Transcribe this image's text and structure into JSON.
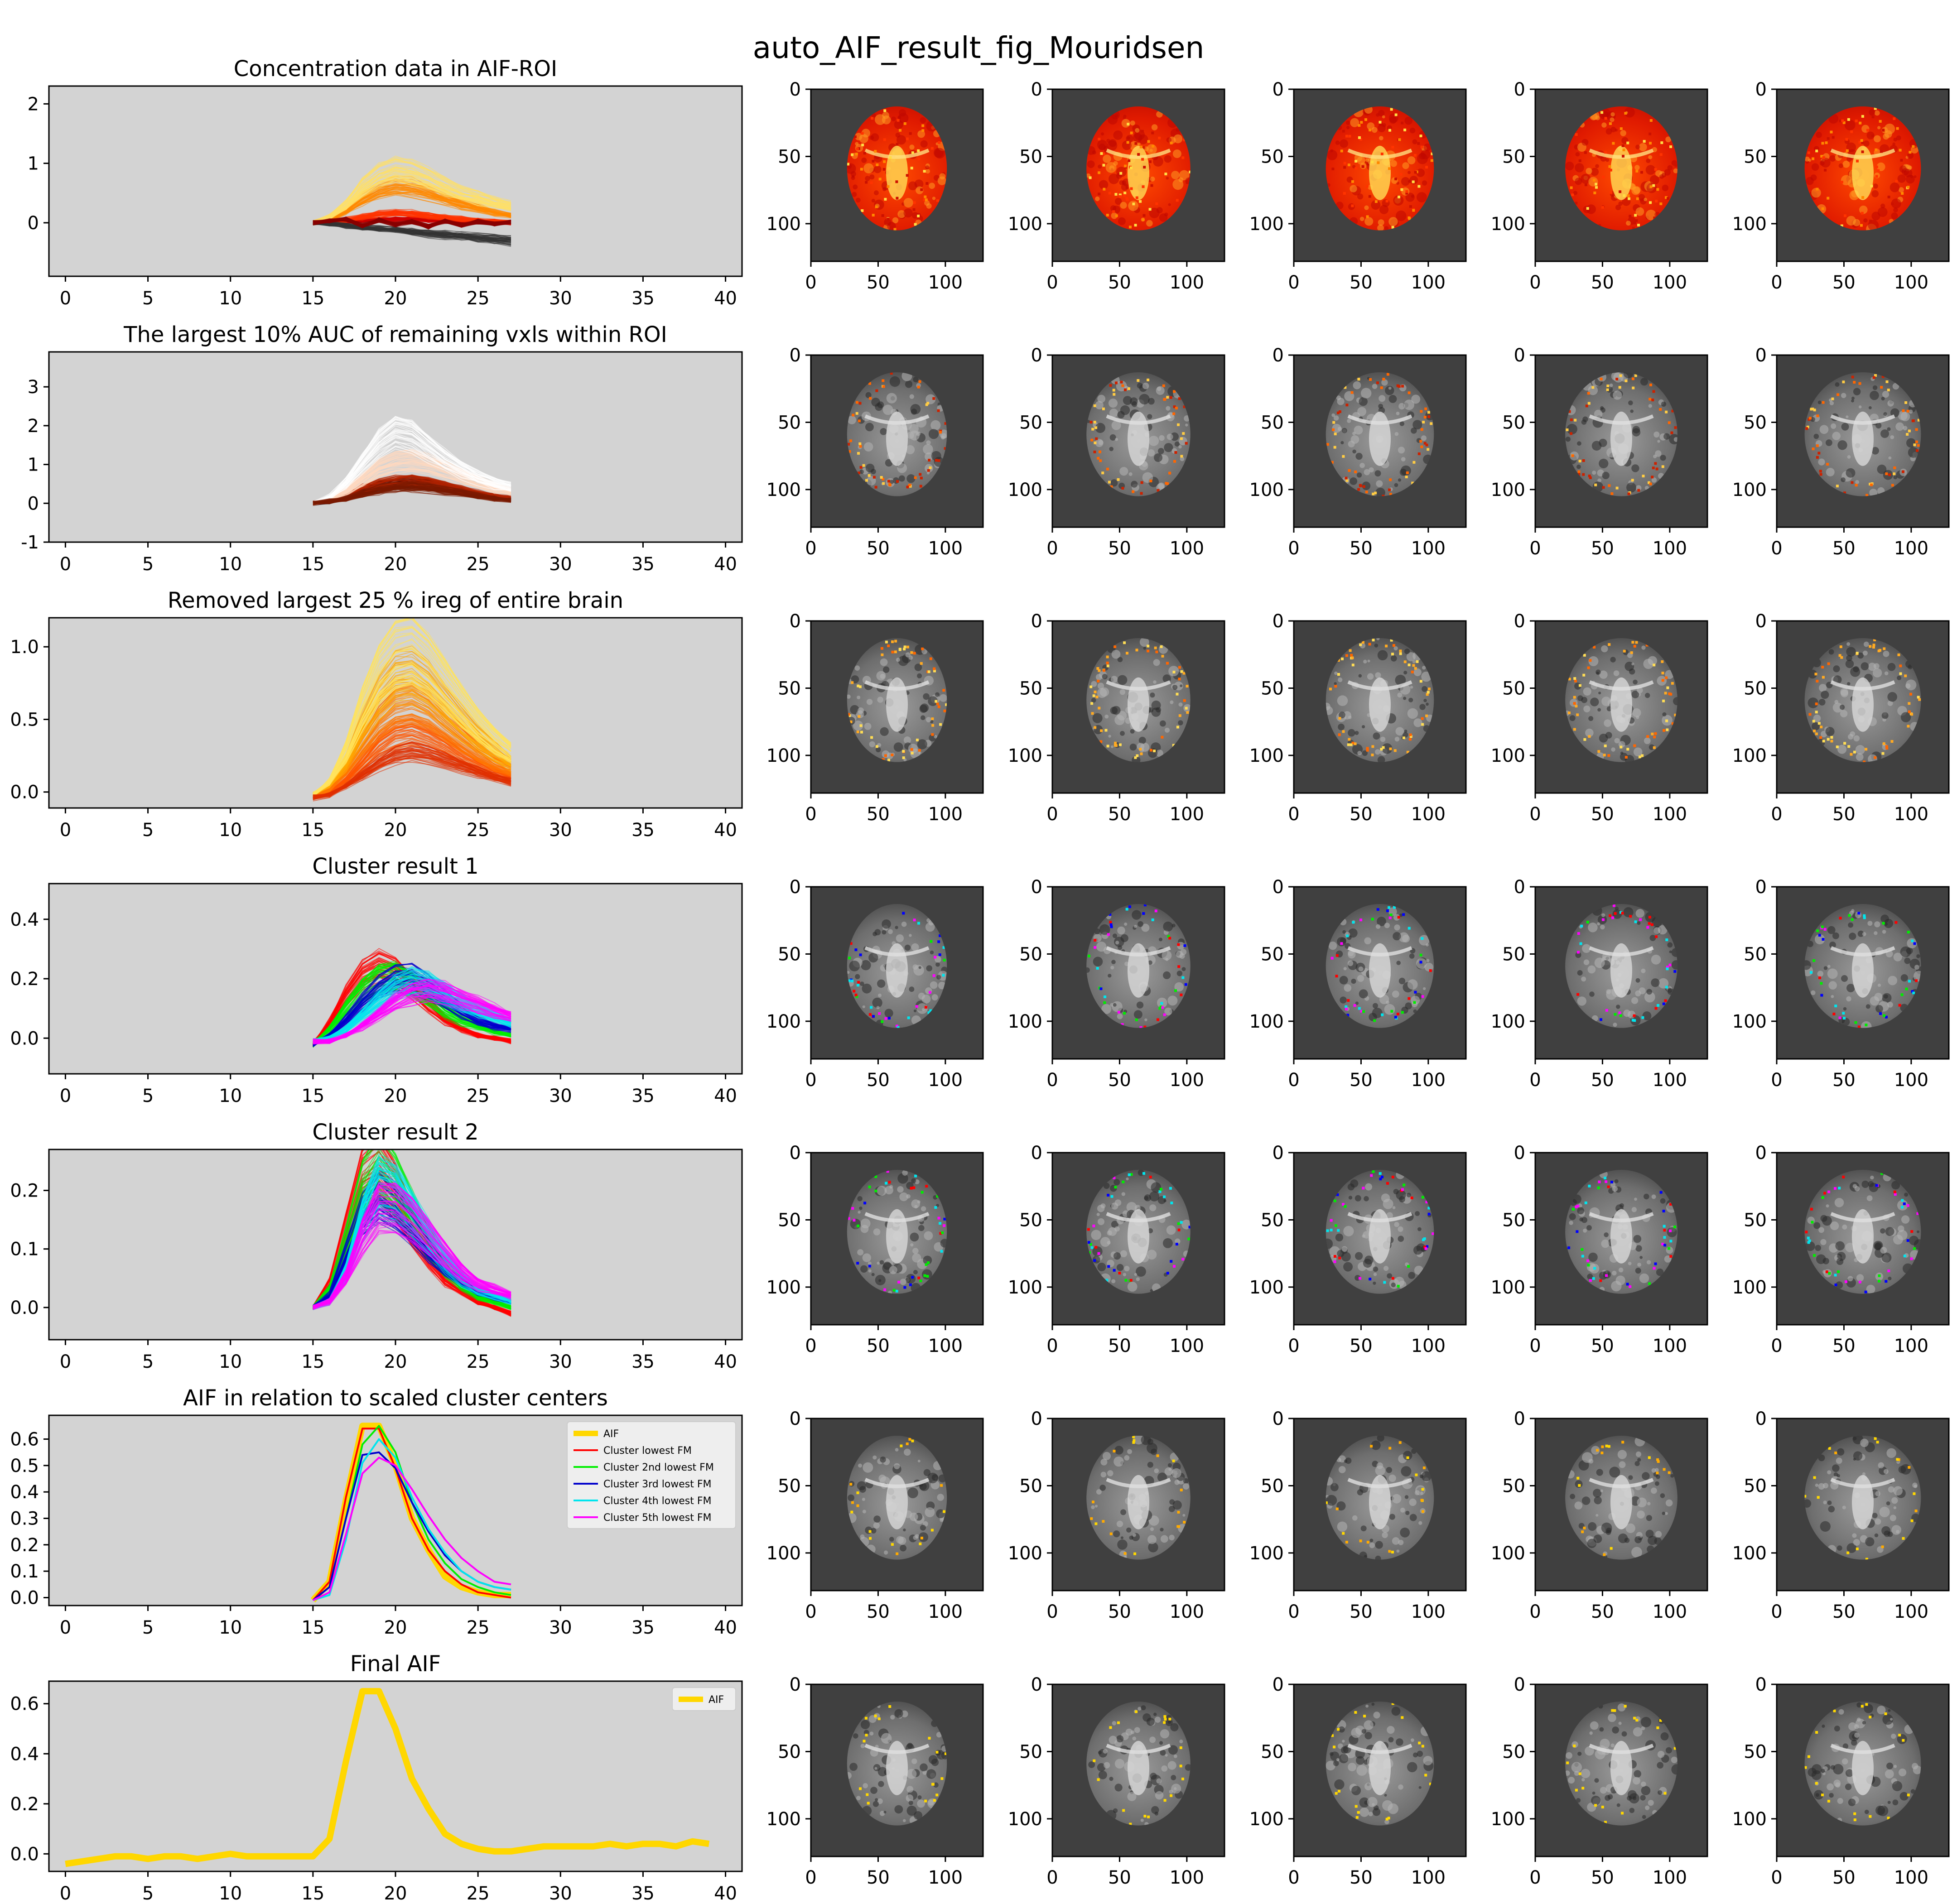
{
  "figure_title": "auto_AIF_result_fig_Mouridsen",
  "chart_data": [
    {
      "type": "line",
      "title": "Concentration data in AIF-ROI",
      "xlim": [
        -1,
        41
      ],
      "ylim": [
        -0.9,
        2.3
      ],
      "xticks": [
        0,
        5,
        10,
        15,
        20,
        25,
        30,
        35,
        40
      ],
      "yticks": [
        0,
        1,
        2
      ],
      "grid": false,
      "background": "#d3d3d3",
      "series_kind": "voxel curves (many thin lines)",
      "x": [
        15,
        16,
        17,
        18,
        19,
        20,
        21,
        22,
        23,
        24,
        25,
        26,
        27
      ],
      "series": [
        {
          "values": [
            0.0,
            0.01,
            0.02,
            0.04,
            0.05,
            0.06,
            0.06,
            0.05,
            0.04,
            0.03,
            0.02,
            0.01,
            0.0
          ],
          "color": "#cc0000"
        },
        {
          "values": [
            0.0,
            0.02,
            0.05,
            0.1,
            0.14,
            0.16,
            0.15,
            0.12,
            0.09,
            0.06,
            0.04,
            0.02,
            0.01
          ],
          "color": "#ff3300"
        },
        {
          "values": [
            0.0,
            0.05,
            0.2,
            0.4,
            0.55,
            0.62,
            0.6,
            0.52,
            0.42,
            0.32,
            0.25,
            0.18,
            0.12
          ],
          "color": "#ff8800"
        },
        {
          "values": [
            0.0,
            0.1,
            0.3,
            0.6,
            0.8,
            0.9,
            0.85,
            0.75,
            0.62,
            0.5,
            0.42,
            0.35,
            0.28
          ],
          "color": "#ffe066"
        },
        {
          "values": [
            0.0,
            -0.02,
            -0.05,
            -0.08,
            -0.1,
            -0.12,
            -0.15,
            -0.18,
            -0.2,
            -0.22,
            -0.25,
            -0.28,
            -0.3
          ],
          "color": "#333333"
        },
        {
          "values": [
            0.0,
            0.03,
            0.06,
            -0.05,
            0.04,
            -0.03,
            0.02,
            -0.06,
            0.03,
            -0.04,
            0.02,
            -0.02,
            0.01
          ],
          "color": "#880000"
        }
      ]
    },
    {
      "type": "line",
      "title": "The largest 10% AUC of remaining vxls within ROI",
      "xlim": [
        -1,
        41
      ],
      "ylim": [
        -1.0,
        3.9
      ],
      "xticks": [
        0,
        5,
        10,
        15,
        20,
        25,
        30,
        35,
        40
      ],
      "yticks": [
        -1,
        0,
        1,
        2,
        3
      ],
      "grid": false,
      "background": "#d3d3d3",
      "series_kind": "voxel curves (many thin lines)",
      "x": [
        15,
        16,
        17,
        18,
        19,
        20,
        21,
        22,
        23,
        24,
        25,
        26,
        27
      ],
      "series": [
        {
          "values": [
            0.0,
            0.05,
            0.15,
            0.3,
            0.42,
            0.5,
            0.52,
            0.48,
            0.4,
            0.3,
            0.22,
            0.15,
            0.1
          ],
          "color": "#330000"
        },
        {
          "values": [
            0.0,
            0.08,
            0.2,
            0.38,
            0.5,
            0.58,
            0.6,
            0.55,
            0.45,
            0.35,
            0.25,
            0.18,
            0.12
          ],
          "color": "#b22200"
        },
        {
          "values": [
            0.0,
            0.1,
            0.3,
            0.6,
            0.9,
            1.05,
            1.1,
            1.0,
            0.85,
            0.7,
            0.55,
            0.4,
            0.3
          ],
          "color": "#ffd9c0"
        },
        {
          "values": [
            0.0,
            0.15,
            0.5,
            1.0,
            1.5,
            1.8,
            1.7,
            1.4,
            1.1,
            0.85,
            0.65,
            0.5,
            0.4
          ],
          "color": "#ffffff"
        },
        {
          "values": [
            0.0,
            0.05,
            0.12,
            0.25,
            0.35,
            0.42,
            0.44,
            0.4,
            0.33,
            0.26,
            0.19,
            0.13,
            0.09
          ],
          "color": "#7a1a00"
        }
      ]
    },
    {
      "type": "line",
      "title": "Removed largest 25 % ireg of entire brain",
      "xlim": [
        -1,
        41
      ],
      "ylim": [
        -0.11,
        1.2
      ],
      "xticks": [
        0,
        5,
        10,
        15,
        20,
        25,
        30,
        35,
        40
      ],
      "yticks": [
        0.0,
        0.5,
        1.0
      ],
      "grid": false,
      "background": "#d3d3d3",
      "series_kind": "voxel curves (many thin lines)",
      "x": [
        15,
        16,
        17,
        18,
        19,
        20,
        21,
        22,
        23,
        24,
        25,
        26,
        27
      ],
      "series": [
        {
          "values": [
            -0.02,
            0.0,
            0.08,
            0.2,
            0.32,
            0.4,
            0.42,
            0.38,
            0.32,
            0.25,
            0.19,
            0.14,
            0.1
          ],
          "color": "#ff5500"
        },
        {
          "values": [
            -0.03,
            0.02,
            0.15,
            0.32,
            0.48,
            0.58,
            0.6,
            0.55,
            0.45,
            0.36,
            0.27,
            0.2,
            0.15
          ],
          "color": "#ff7700"
        },
        {
          "values": [
            -0.02,
            0.05,
            0.2,
            0.45,
            0.65,
            0.78,
            0.8,
            0.72,
            0.6,
            0.48,
            0.37,
            0.28,
            0.2
          ],
          "color": "#ffaa00"
        },
        {
          "values": [
            -0.02,
            0.07,
            0.28,
            0.58,
            0.82,
            0.95,
            0.98,
            0.88,
            0.74,
            0.6,
            0.47,
            0.36,
            0.27
          ],
          "color": "#ffe45c"
        },
        {
          "values": [
            -0.04,
            -0.02,
            0.04,
            0.12,
            0.2,
            0.26,
            0.28,
            0.26,
            0.22,
            0.18,
            0.14,
            0.1,
            0.07
          ],
          "color": "#e03000"
        }
      ]
    },
    {
      "type": "line",
      "title": "Cluster result 1",
      "xlim": [
        -1,
        41
      ],
      "ylim": [
        -0.12,
        0.52
      ],
      "xticks": [
        0,
        5,
        10,
        15,
        20,
        25,
        30,
        35,
        40
      ],
      "yticks": [
        0.0,
        0.2,
        0.4
      ],
      "grid": false,
      "background": "#d3d3d3",
      "series_kind": "clustered voxel curves (many thin lines per cluster)",
      "x": [
        15,
        16,
        17,
        18,
        19,
        20,
        21,
        22,
        23,
        24,
        25,
        26,
        27
      ],
      "series": [
        {
          "values": [
            -0.02,
            0.05,
            0.14,
            0.21,
            0.24,
            0.22,
            0.17,
            0.11,
            0.06,
            0.03,
            0.01,
            0.0,
            -0.01
          ],
          "color": "#ff0000"
        },
        {
          "values": [
            -0.02,
            0.03,
            0.1,
            0.16,
            0.2,
            0.21,
            0.18,
            0.14,
            0.09,
            0.06,
            0.04,
            0.02,
            0.01
          ],
          "color": "#00ee00"
        },
        {
          "values": [
            -0.02,
            0.01,
            0.06,
            0.12,
            0.17,
            0.2,
            0.2,
            0.17,
            0.13,
            0.09,
            0.06,
            0.04,
            0.03
          ],
          "color": "#0000cc"
        },
        {
          "values": [
            -0.01,
            0.0,
            0.03,
            0.08,
            0.13,
            0.17,
            0.19,
            0.18,
            0.15,
            0.12,
            0.09,
            0.07,
            0.05
          ],
          "color": "#00e5ee"
        },
        {
          "values": [
            -0.01,
            -0.01,
            0.01,
            0.04,
            0.08,
            0.12,
            0.15,
            0.16,
            0.15,
            0.13,
            0.11,
            0.09,
            0.07
          ],
          "color": "#ff00ff"
        }
      ]
    },
    {
      "type": "line",
      "title": "Cluster result 2",
      "xlim": [
        -1,
        41
      ],
      "ylim": [
        -0.055,
        0.27
      ],
      "xticks": [
        0,
        5,
        10,
        15,
        20,
        25,
        30,
        35,
        40
      ],
      "yticks": [
        0.0,
        0.1,
        0.2
      ],
      "grid": false,
      "background": "#d3d3d3",
      "series_kind": "clustered voxel curves (many thin lines per cluster)",
      "x": [
        15,
        16,
        17,
        18,
        19,
        20,
        21,
        22,
        23,
        24,
        25,
        26,
        27
      ],
      "series": [
        {
          "values": [
            0.0,
            0.04,
            0.13,
            0.22,
            0.24,
            0.2,
            0.14,
            0.09,
            0.05,
            0.03,
            0.01,
            0.0,
            -0.01
          ],
          "color": "#ff0000"
        },
        {
          "values": [
            0.0,
            0.03,
            0.11,
            0.2,
            0.24,
            0.21,
            0.16,
            0.11,
            0.07,
            0.04,
            0.02,
            0.01,
            0.0
          ],
          "color": "#00ee00"
        },
        {
          "values": [
            0.0,
            0.02,
            0.09,
            0.16,
            0.19,
            0.17,
            0.14,
            0.1,
            0.07,
            0.05,
            0.03,
            0.02,
            0.01
          ],
          "color": "#0000cc"
        },
        {
          "values": [
            0.0,
            0.01,
            0.06,
            0.15,
            0.21,
            0.2,
            0.16,
            0.12,
            0.08,
            0.05,
            0.03,
            0.02,
            0.01
          ],
          "color": "#00e5ee"
        },
        {
          "values": [
            0.0,
            0.01,
            0.05,
            0.12,
            0.17,
            0.17,
            0.15,
            0.12,
            0.09,
            0.06,
            0.04,
            0.03,
            0.02
          ],
          "color": "#ff00ff"
        }
      ]
    },
    {
      "type": "line",
      "title": "AIF in relation to scaled cluster centers",
      "xlim": [
        -1,
        41
      ],
      "ylim": [
        -0.03,
        0.69
      ],
      "xticks": [
        0,
        5,
        10,
        15,
        20,
        25,
        30,
        35,
        40
      ],
      "yticks": [
        0.0,
        0.1,
        0.2,
        0.3,
        0.4,
        0.5,
        0.6
      ],
      "grid": false,
      "background": "#d3d3d3",
      "legend": "top-right",
      "x": [
        15,
        16,
        17,
        18,
        19,
        20,
        21,
        22,
        23,
        24,
        25,
        26,
        27
      ],
      "series": [
        {
          "name": "AIF",
          "values": [
            -0.01,
            0.06,
            0.37,
            0.65,
            0.65,
            0.5,
            0.3,
            0.18,
            0.08,
            0.04,
            0.02,
            0.01,
            0.01
          ],
          "color": "#ffd700",
          "width": 3
        },
        {
          "name": "Cluster lowest FM",
          "values": [
            -0.01,
            0.06,
            0.38,
            0.64,
            0.64,
            0.49,
            0.3,
            0.18,
            0.1,
            0.05,
            0.02,
            0.01,
            0.0
          ],
          "color": "#ff0000",
          "width": 1
        },
        {
          "name": "Cluster 2nd lowest FM",
          "values": [
            -0.01,
            0.04,
            0.3,
            0.58,
            0.65,
            0.55,
            0.36,
            0.22,
            0.13,
            0.07,
            0.04,
            0.02,
            0.01
          ],
          "color": "#00ee00",
          "width": 1
        },
        {
          "name": "Cluster 3rd lowest FM",
          "values": [
            -0.01,
            0.04,
            0.3,
            0.54,
            0.55,
            0.49,
            0.36,
            0.25,
            0.16,
            0.1,
            0.06,
            0.04,
            0.03
          ],
          "color": "#0000cc",
          "width": 1
        },
        {
          "name": "Cluster 4th lowest FM",
          "values": [
            -0.01,
            0.01,
            0.22,
            0.51,
            0.6,
            0.53,
            0.38,
            0.26,
            0.17,
            0.1,
            0.06,
            0.04,
            0.03
          ],
          "color": "#00e5ee",
          "width": 1
        },
        {
          "name": "Cluster 5th lowest FM",
          "values": [
            -0.01,
            0.02,
            0.24,
            0.47,
            0.53,
            0.5,
            0.41,
            0.31,
            0.22,
            0.15,
            0.1,
            0.06,
            0.05
          ],
          "color": "#ff00ff",
          "width": 1
        }
      ]
    },
    {
      "type": "line",
      "title": "Final AIF",
      "xlim": [
        -1,
        41
      ],
      "ylim": [
        -0.07,
        0.69
      ],
      "xticks": [
        0,
        5,
        10,
        15,
        20,
        25,
        30,
        35,
        40
      ],
      "yticks": [
        0.0,
        0.2,
        0.4,
        0.6
      ],
      "grid": false,
      "background": "#d3d3d3",
      "legend": "top-right",
      "x": [
        0,
        1,
        2,
        3,
        4,
        5,
        6,
        7,
        8,
        9,
        10,
        11,
        12,
        13,
        14,
        15,
        16,
        17,
        18,
        19,
        20,
        21,
        22,
        23,
        24,
        25,
        26,
        27,
        28,
        29,
        30,
        31,
        32,
        33,
        34,
        35,
        36,
        37,
        38,
        39
      ],
      "series": [
        {
          "name": "AIF",
          "values": [
            -0.04,
            -0.03,
            -0.02,
            -0.01,
            -0.01,
            -0.02,
            -0.01,
            -0.01,
            -0.02,
            -0.01,
            0.0,
            -0.01,
            -0.01,
            -0.01,
            -0.01,
            -0.01,
            0.06,
            0.37,
            0.65,
            0.65,
            0.5,
            0.3,
            0.18,
            0.08,
            0.04,
            0.02,
            0.01,
            0.01,
            0.02,
            0.03,
            0.03,
            0.03,
            0.03,
            0.04,
            0.03,
            0.04,
            0.04,
            0.03,
            0.05,
            0.04
          ],
          "color": "#ffd700",
          "width": 3
        }
      ]
    }
  ],
  "image_panels": {
    "xticks": [
      0,
      50,
      100
    ],
    "yticks": [
      0,
      50,
      100
    ],
    "xlim": [
      0,
      128
    ],
    "ylim": [
      128,
      0
    ],
    "columns": 5,
    "rows": [
      {
        "overlay": "red-hot map (full brain)",
        "palette": [
          "#cc1100",
          "#ff3300",
          "#ff8800",
          "#ffdd44"
        ]
      },
      {
        "overlay": "gray brain with sparse red-hot voxels",
        "palette": [
          "#cc2200",
          "#ff6600",
          "#ffcc44"
        ]
      },
      {
        "overlay": "gray brain with orange voxels",
        "palette": [
          "#ff6600",
          "#ffaa22",
          "#ffdd55"
        ]
      },
      {
        "overlay": "gray brain with cluster colored voxels",
        "palette": [
          "#ff0000",
          "#00ee00",
          "#0000ff",
          "#00e5ee",
          "#ff00ff"
        ]
      },
      {
        "overlay": "gray brain with sparse cluster voxels",
        "palette": [
          "#ff0000",
          "#00ee00",
          "#0000ff",
          "#00e5ee",
          "#ff00ff"
        ]
      },
      {
        "overlay": "gray brain with faint voxels",
        "palette": [
          "#ffd700",
          "#ffaa00"
        ]
      },
      {
        "overlay": "gray brain with faint AIF voxels",
        "palette": [
          "#ffd700"
        ]
      }
    ]
  }
}
